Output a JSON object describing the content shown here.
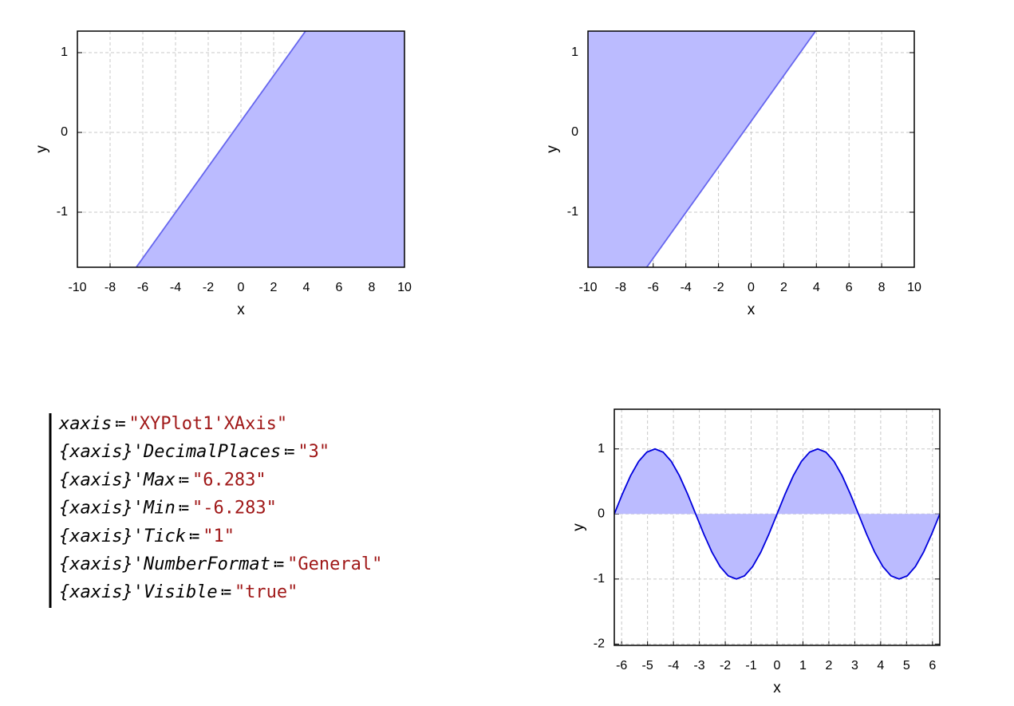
{
  "chart_data": [
    {
      "type": "area",
      "fill": "below",
      "x": [
        -6.4,
        3.95
      ],
      "y": [
        -1.69,
        1.27
      ],
      "line_color": "#6666ee",
      "fill_color": "#bbbbff",
      "xlim": [
        -10,
        10
      ],
      "ylim": [
        -1.69,
        1.27
      ],
      "xticks": [
        -10,
        -8,
        -6,
        -4,
        -2,
        0,
        2,
        4,
        6,
        8,
        10
      ],
      "yticks": [
        -1,
        0,
        1
      ],
      "xlabel": "x",
      "ylabel": "y",
      "grid": true
    },
    {
      "type": "area",
      "fill": "above",
      "x": [
        -6.4,
        3.95
      ],
      "y": [
        -1.69,
        1.27
      ],
      "line_color": "#6666ee",
      "fill_color": "#bbbbff",
      "xlim": [
        -10,
        10
      ],
      "ylim": [
        -1.69,
        1.27
      ],
      "xticks": [
        -10,
        -8,
        -6,
        -4,
        -2,
        0,
        2,
        4,
        6,
        8,
        10
      ],
      "yticks": [
        -1,
        0,
        1
      ],
      "xlabel": "x",
      "ylabel": "y",
      "grid": true
    },
    {
      "type": "area",
      "fill": "zero",
      "x": [
        -6.283,
        -5.969,
        -5.655,
        -5.341,
        -5.027,
        -4.712,
        -4.398,
        -4.084,
        -3.77,
        -3.456,
        -3.142,
        -2.827,
        -2.513,
        -2.199,
        -1.885,
        -1.571,
        -1.257,
        -0.942,
        -0.628,
        -0.314,
        0,
        0.314,
        0.628,
        0.942,
        1.257,
        1.571,
        1.885,
        2.199,
        2.513,
        2.827,
        3.142,
        3.456,
        3.77,
        4.084,
        4.398,
        4.712,
        5.027,
        5.341,
        5.655,
        5.969,
        6.283
      ],
      "y": [
        0,
        0.309,
        0.588,
        0.809,
        0.951,
        1,
        0.951,
        0.809,
        0.588,
        0.309,
        0,
        -0.309,
        -0.588,
        -0.809,
        -0.951,
        -1,
        -0.951,
        -0.809,
        -0.588,
        -0.309,
        0,
        0.309,
        0.588,
        0.809,
        0.951,
        1,
        0.951,
        0.809,
        0.588,
        0.309,
        0,
        -0.309,
        -0.588,
        -0.809,
        -0.951,
        -1,
        -0.951,
        -0.809,
        -0.588,
        -0.309,
        0
      ],
      "line_color": "#0000dd",
      "fill_color": "#bbbbff",
      "xlim": [
        -6.283,
        6.283
      ],
      "ylim": [
        -2.02,
        1.61
      ],
      "xticks": [
        -6,
        -5,
        -4,
        -3,
        -2,
        -1,
        0,
        1,
        2,
        3,
        4,
        5,
        6
      ],
      "yticks": [
        -2,
        -1,
        0,
        1
      ],
      "xlabel": "x",
      "ylabel": "y",
      "grid": true
    }
  ],
  "code": {
    "lines": [
      {
        "name": "xaxis",
        "assign": "≔",
        "value": "\"XYPlot1'XAxis\""
      },
      {
        "name": "{xaxis}'DecimalPlaces",
        "assign": "≔",
        "value": "\"3\""
      },
      {
        "name": "{xaxis}'Max",
        "assign": "≔",
        "value": "\"6.283\""
      },
      {
        "name": "{xaxis}'Min",
        "assign": "≔",
        "value": "\"-6.283\""
      },
      {
        "name": "{xaxis}'Tick",
        "assign": "≔",
        "value": "\"1\""
      },
      {
        "name": "{xaxis}'NumberFormat",
        "assign": "≔",
        "value": "\"General\""
      },
      {
        "name": "{xaxis}'Visible",
        "assign": "≔",
        "value": "\"true\""
      }
    ]
  }
}
